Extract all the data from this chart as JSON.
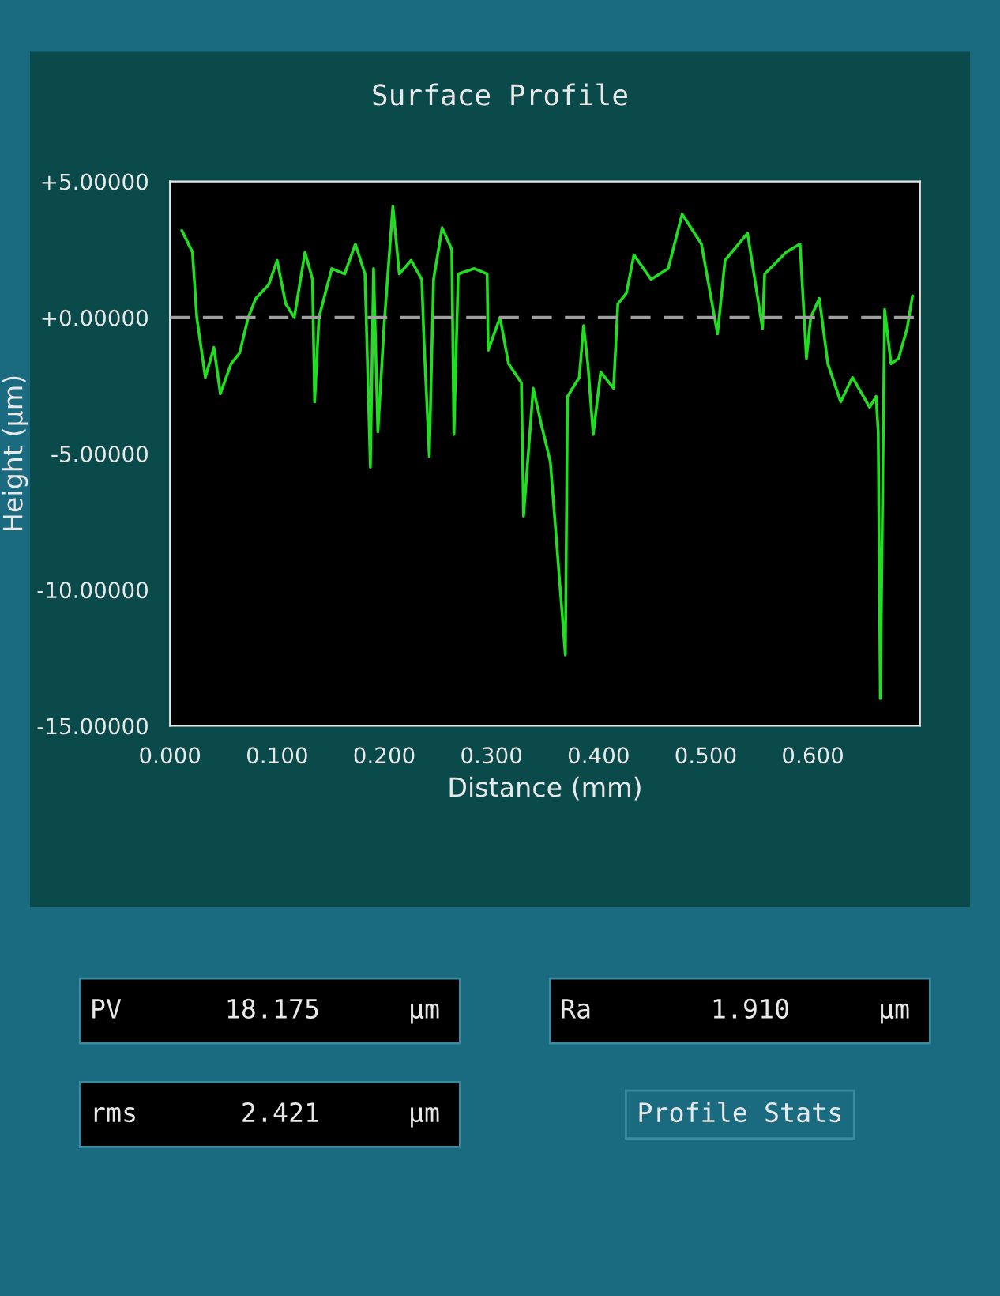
{
  "chart_data": {
    "type": "line",
    "title": "Surface Profile",
    "xlabel": "Distance (mm)",
    "ylabel": "Height (µm)",
    "xlim": [
      0,
      0.7
    ],
    "xticks": [
      {
        "value": 0,
        "label": "0.000"
      },
      {
        "value": 0.1,
        "label": "0.100"
      },
      {
        "value": 0.2,
        "label": "0.200"
      },
      {
        "value": 0.3,
        "label": "0.300"
      },
      {
        "value": 0.4,
        "label": "0.400"
      },
      {
        "value": 0.5,
        "label": "0.500"
      },
      {
        "value": 0.6,
        "label": "0.600"
      }
    ],
    "ylim": [
      -15,
      5
    ],
    "yticks": [
      {
        "value": 5,
        "label": "+5.00000"
      },
      {
        "value": 0,
        "label": "+0.00000"
      },
      {
        "value": -5,
        "label": "-5.00000"
      },
      {
        "value": -10,
        "label": "-10.00000"
      },
      {
        "value": -15,
        "label": "-15.00000"
      }
    ],
    "ref_lines": [
      {
        "axis": "y",
        "value": 0,
        "color": "#a0a0a0",
        "line_style": "dashed"
      }
    ],
    "grid": false,
    "series": [
      {
        "color": "#22dd22",
        "x": [
          0.011,
          0.021,
          0.025,
          0.033,
          0.041,
          0.047,
          0.057,
          0.065,
          0.073,
          0.08,
          0.092,
          0.1,
          0.108,
          0.116,
          0.126,
          0.133,
          0.135,
          0.139,
          0.151,
          0.163,
          0.173,
          0.182,
          0.187,
          0.19,
          0.194,
          0.2,
          0.208,
          0.214,
          0.225,
          0.235,
          0.237,
          0.242,
          0.246,
          0.254,
          0.263,
          0.265,
          0.269,
          0.284,
          0.296,
          0.297,
          0.308,
          0.316,
          0.328,
          0.33,
          0.339,
          0.347,
          0.355,
          0.369,
          0.371,
          0.382,
          0.386,
          0.39,
          0.395,
          0.402,
          0.414,
          0.418,
          0.426,
          0.433,
          0.449,
          0.465,
          0.478,
          0.496,
          0.511,
          0.518,
          0.539,
          0.553,
          0.555,
          0.575,
          0.588,
          0.594,
          0.598,
          0.606,
          0.614,
          0.626,
          0.637,
          0.653,
          0.659,
          0.661,
          0.663,
          0.667,
          0.673,
          0.68,
          0.688,
          0.693
        ],
        "values": [
          3.2,
          2.4,
          0.0,
          -2.2,
          -1.1,
          -2.8,
          -1.7,
          -1.3,
          0.0,
          0.7,
          1.2,
          2.1,
          0.5,
          0.0,
          2.4,
          1.4,
          -3.1,
          0.0,
          1.8,
          1.6,
          2.7,
          1.6,
          -5.5,
          1.8,
          -4.2,
          -0.2,
          4.1,
          1.6,
          2.1,
          1.4,
          -0.8,
          -5.1,
          1.4,
          3.3,
          2.5,
          -4.3,
          1.6,
          1.8,
          1.6,
          -1.2,
          0.0,
          -1.7,
          -2.4,
          -7.3,
          -2.6,
          -4.0,
          -5.3,
          -12.4,
          -2.9,
          -2.2,
          -0.3,
          -1.7,
          -4.3,
          -2.0,
          -2.6,
          0.5,
          0.9,
          2.3,
          1.4,
          1.8,
          3.8,
          2.7,
          -0.6,
          2.1,
          3.1,
          -0.4,
          1.6,
          2.4,
          2.7,
          -1.5,
          0.0,
          0.7,
          -1.7,
          -3.1,
          -2.2,
          -3.3,
          -2.9,
          -4.2,
          -14.0,
          0.3,
          -1.7,
          -1.5,
          -0.4,
          0.8
        ]
      }
    ],
    "annotations": [
      "PV",
      "18.175",
      "µm",
      "rms",
      "2.421",
      "µm",
      "Ra",
      "1.910",
      "µm",
      "Profile Stats"
    ]
  }
}
